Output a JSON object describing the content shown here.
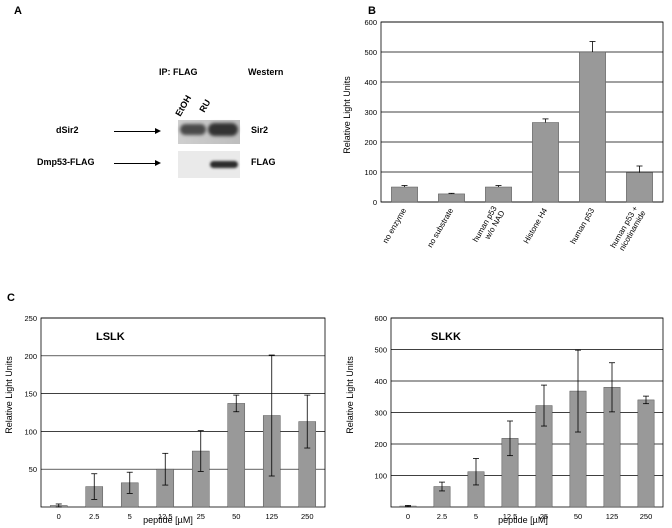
{
  "panel_letters": {
    "a": "A",
    "b": "B",
    "c": "C"
  },
  "western_blot": {
    "header_ip": "IP: FLAG",
    "header_method": "Western",
    "lanes": [
      "EtOH",
      "RU"
    ],
    "rows": [
      {
        "left_label": "dSir2",
        "right_label": "Sir2"
      },
      {
        "left_label": "Dmp53-FLAG",
        "right_label": "FLAG"
      }
    ]
  },
  "chart_data": [
    {
      "type": "bar",
      "panel": "B",
      "title": "",
      "ylabel": "Relative Light Units",
      "xlabel": "",
      "ylim": [
        0,
        600
      ],
      "yticks": [
        0,
        100,
        200,
        300,
        400,
        500,
        600
      ],
      "grid": true,
      "categories": [
        "no enzyme",
        "no substrate",
        "human p53 w/o NAD",
        "Histone H4",
        "human p53",
        "human p53 + nicotinamide"
      ],
      "category_lines": [
        [
          "no enzyme"
        ],
        [
          "no substrate"
        ],
        [
          "human p53",
          "w/o NAD"
        ],
        [
          "Histone H4"
        ],
        [
          "human p53"
        ],
        [
          "human p53 +",
          "nicotinamide"
        ]
      ],
      "values": [
        50,
        27,
        50,
        265,
        500,
        98
      ],
      "errors": [
        5,
        2,
        5,
        12,
        35,
        22
      ]
    },
    {
      "type": "bar",
      "panel": "C-left",
      "title": "LSLK",
      "ylabel": "Relative Light Units",
      "xlabel": "peptide [µM]",
      "ylim": [
        0,
        250
      ],
      "yticks": [
        50,
        100,
        150,
        200,
        250
      ],
      "grid": true,
      "categories": [
        "0",
        "2.5",
        "5",
        "12.5",
        "25",
        "50",
        "125",
        "250"
      ],
      "values": [
        2,
        27,
        32,
        50,
        74,
        137,
        121,
        113
      ],
      "errors": [
        2,
        17,
        14,
        21,
        27,
        11,
        80,
        35
      ]
    },
    {
      "type": "bar",
      "panel": "C-right",
      "title": "SLKK",
      "ylabel": "Relative Light Units",
      "xlabel": "peptide [µM]",
      "ylim": [
        0,
        600
      ],
      "yticks": [
        100,
        200,
        300,
        400,
        500,
        600
      ],
      "grid": true,
      "categories": [
        "0",
        "2.5",
        "5",
        "12.5",
        "25",
        "50",
        "125",
        "250"
      ],
      "values": [
        3,
        65,
        112,
        218,
        322,
        368,
        380,
        340
      ],
      "errors": [
        2,
        14,
        42,
        55,
        65,
        130,
        78,
        12
      ]
    }
  ]
}
